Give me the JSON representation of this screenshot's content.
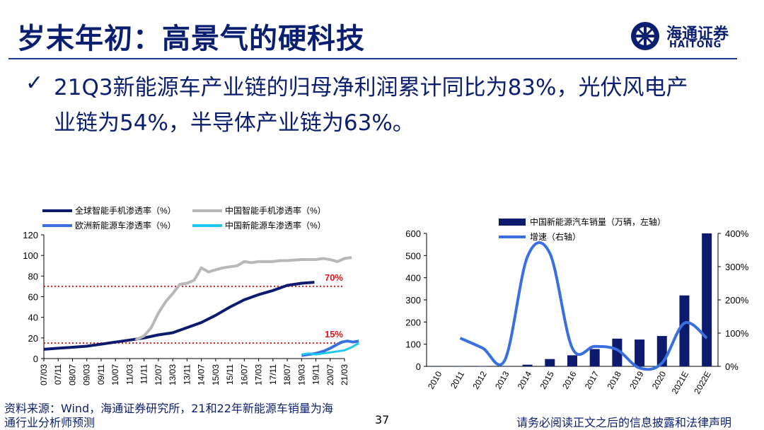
{
  "header": {
    "title": "岁末年初：高景气的硬科技",
    "logo_cn": "海通证券",
    "logo_en": "HAITONG"
  },
  "bullet": {
    "line1": "21Q3新能源车产业链的归母净利润累计同比为83%，光伏风电产",
    "line2": "业链为54%，半导体产业链为63%。"
  },
  "colors": {
    "brand": "#0a1f70",
    "global_phone": "#0d1b6e",
    "china_phone": "#b8b8b8",
    "europe_ev": "#3a6fe0",
    "china_ev": "#1ec8f0",
    "threshold": "#e0161b"
  },
  "chart_data": [
    {
      "type": "line",
      "legend": [
        "全球智能手机渗透率（%）",
        "中国智能手机渗透率（%）",
        "欧洲新能源车渗透率（%）",
        "中国新能源车渗透率（%）"
      ],
      "x_ticks": [
        "07/03",
        "07/11",
        "08/07",
        "09/03",
        "09/11",
        "10/07",
        "11/03",
        "11/11",
        "12/07",
        "13/03",
        "13/11",
        "14/07",
        "15/03",
        "15/11",
        "16/07",
        "17/03",
        "17/11",
        "18/07",
        "19/03",
        "19/11",
        "20/07",
        "21/03"
      ],
      "ylim": [
        0,
        120
      ],
      "y_ticks": [
        "0",
        "20",
        "40",
        "60",
        "80",
        "100",
        "120"
      ],
      "reference_lines": [
        {
          "value": 70,
          "label": "70%"
        },
        {
          "value": 15,
          "label": "15%"
        }
      ],
      "series": [
        {
          "name": "全球智能手机渗透率（%）",
          "points": [
            [
              0,
              9
            ],
            [
              1,
              10
            ],
            [
              2,
              11
            ],
            [
              3,
              12
            ],
            [
              4,
              14
            ],
            [
              5,
              16
            ],
            [
              6,
              18
            ],
            [
              7,
              20
            ],
            [
              8,
              23
            ],
            [
              9,
              25
            ],
            [
              10,
              30
            ],
            [
              11,
              35
            ],
            [
              12,
              42
            ],
            [
              13,
              50
            ],
            [
              14,
              57
            ],
            [
              15,
              62
            ],
            [
              16,
              66
            ],
            [
              17,
              71
            ],
            [
              18,
              73
            ],
            [
              18.9,
              74
            ]
          ]
        },
        {
          "name": "中国智能手机渗透率（%）",
          "points": [
            [
              6.4,
              18
            ],
            [
              7,
              22
            ],
            [
              7.5,
              30
            ],
            [
              8,
              44
            ],
            [
              8.5,
              55
            ],
            [
              9,
              63
            ],
            [
              9.5,
              72
            ],
            [
              10,
              73
            ],
            [
              10.5,
              76
            ],
            [
              11,
              88
            ],
            [
              11.5,
              84
            ],
            [
              12,
              86
            ],
            [
              12.5,
              88
            ],
            [
              13,
              89
            ],
            [
              13.5,
              90
            ],
            [
              14,
              94
            ],
            [
              14.5,
              93
            ],
            [
              15,
              94
            ],
            [
              15.5,
              94
            ],
            [
              16,
              94
            ],
            [
              16.5,
              95
            ],
            [
              17,
              95
            ],
            [
              18,
              96
            ],
            [
              19,
              96
            ],
            [
              19.5,
              97
            ],
            [
              20,
              96
            ],
            [
              20.5,
              94
            ],
            [
              21,
              97
            ],
            [
              21.5,
              98
            ]
          ]
        },
        {
          "name": "欧洲新能源车渗透率（%）",
          "points": [
            [
              18,
              3
            ],
            [
              18.5,
              4
            ],
            [
              19,
              5
            ],
            [
              19.5,
              7
            ],
            [
              20,
              10
            ],
            [
              20.4,
              13
            ],
            [
              20.8,
              16
            ],
            [
              21.2,
              17
            ],
            [
              21.6,
              16
            ],
            [
              22,
              17
            ]
          ]
        },
        {
          "name": "中国新能源车渗透率（%）",
          "points": [
            [
              18,
              4
            ],
            [
              18.5,
              5
            ],
            [
              19,
              4
            ],
            [
              19.5,
              5
            ],
            [
              20,
              6
            ],
            [
              20.5,
              7
            ],
            [
              21,
              8
            ],
            [
              21.5,
              11
            ],
            [
              22,
              15
            ]
          ]
        }
      ]
    },
    {
      "type": "bar",
      "legend": [
        "中国新能源汽车销量（万辆，左轴）",
        "增速（右轴）"
      ],
      "categories": [
        "2010",
        "2011",
        "2012",
        "2013",
        "2014",
        "2015",
        "2016",
        "2017",
        "2018",
        "2019",
        "2020",
        "2021E",
        "2022E"
      ],
      "series": [
        {
          "name": "中国新能源汽车销量（万辆，左轴）",
          "axis": "left",
          "values": [
            0.7,
            0.8,
            1.3,
            1.8,
            7.5,
            33,
            50,
            78,
            125,
            121,
            137,
            320,
            600
          ]
        },
        {
          "name": "增速（右轴）",
          "axis": "right",
          "type": "line",
          "values": [
            null,
            85,
            55,
            20,
            330,
            340,
            55,
            60,
            50,
            -5,
            10,
            130,
            85
          ]
        }
      ],
      "ylim_left": [
        0,
        600
      ],
      "y_ticks_left": [
        "0",
        "100",
        "200",
        "300",
        "400",
        "500",
        "600"
      ],
      "ylim_right": [
        0,
        400
      ],
      "y_ticks_right": [
        "0%",
        "100%",
        "200%",
        "300%",
        "400%"
      ]
    }
  ],
  "footer": {
    "source_line1": "资料来源：Wind，海通证券研究所，21和22年新能源车销量为海",
    "source_line2": "通行业分析师预测",
    "page_number": "37",
    "disclaimer": "请务必阅读正文之后的信息披露和法律声明"
  }
}
